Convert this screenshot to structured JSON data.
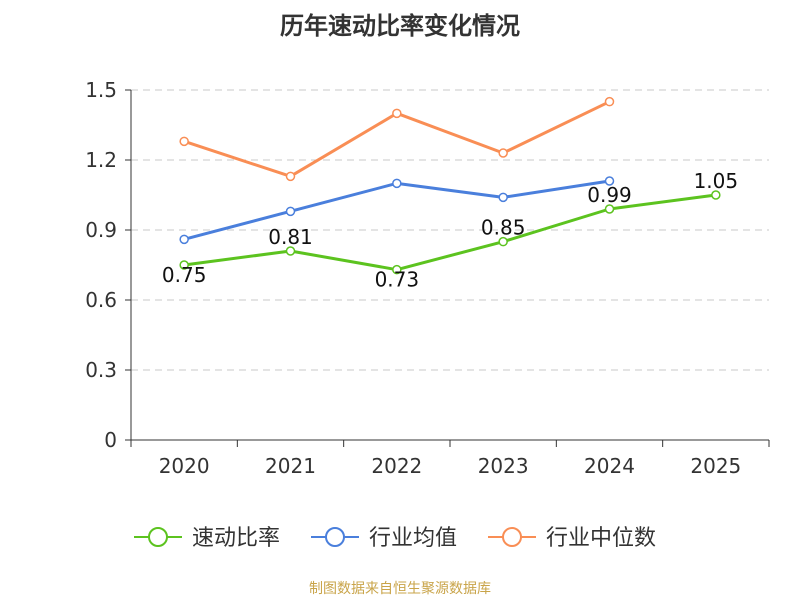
{
  "chart_data": {
    "type": "line",
    "title": "历年速动比率变化情况",
    "categories": [
      "2020",
      "2021",
      "2022",
      "2023",
      "2024",
      "2025"
    ],
    "yticks": [
      "0",
      "0.3",
      "0.6",
      "0.9",
      "1.2",
      "1.5"
    ],
    "ylim": [
      0,
      1.5
    ],
    "grid": true,
    "legend_position": "bottom",
    "series": [
      {
        "name": "速动比率",
        "color": "#5cc31f",
        "values": [
          0.75,
          0.81,
          0.73,
          0.85,
          0.99,
          1.05
        ],
        "labels": [
          "0.75",
          "0.81",
          "0.73",
          "0.85",
          "0.99",
          "1.05"
        ]
      },
      {
        "name": "行业均值",
        "color": "#4a7fdc",
        "values": [
          0.86,
          0.98,
          1.1,
          1.04,
          1.11,
          null
        ]
      },
      {
        "name": "行业中位数",
        "color": "#f98e55",
        "values": [
          1.28,
          1.13,
          1.4,
          1.23,
          1.45,
          null
        ]
      }
    ],
    "source": "制图数据来自恒生聚源数据库",
    "source_color": "#c9a449"
  }
}
